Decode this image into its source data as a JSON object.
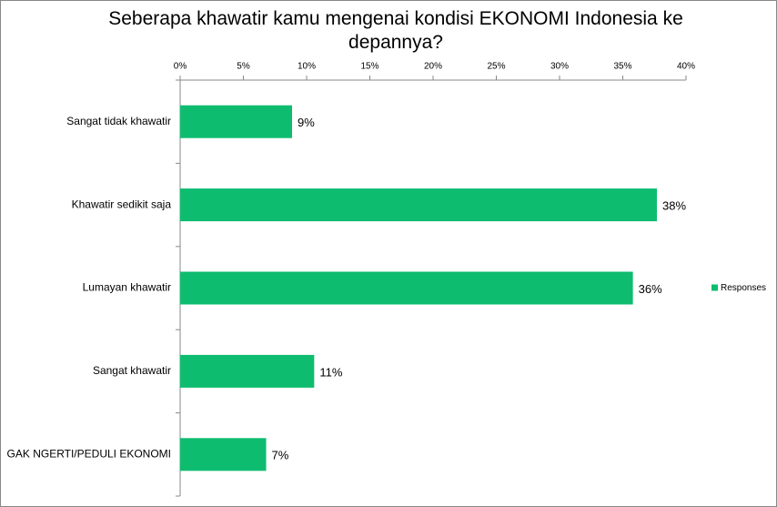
{
  "chart_data": {
    "type": "bar",
    "orientation": "horizontal",
    "title": "Seberapa khawatir kamu mengenai kondisi EKONOMI Indonesia ke depannya?",
    "categories": [
      "Sangat tidak khawatir",
      "Khawatir sedikit saja",
      "Lumayan khawatir",
      "Sangat khawatir",
      "GAK NGERTI/PEDULI EKONOMI"
    ],
    "series": [
      {
        "name": "Responses",
        "color": "#0ebc70",
        "values": [
          8.85,
          37.7,
          35.8,
          10.6,
          6.8
        ],
        "value_labels": [
          "9%",
          "38%",
          "36%",
          "11%",
          "7%"
        ]
      }
    ],
    "xlim": [
      0,
      40
    ],
    "xticks": [
      {
        "value": 0,
        "label": "0%"
      },
      {
        "value": 5,
        "label": "5%"
      },
      {
        "value": 10,
        "label": "10%"
      },
      {
        "value": 15,
        "label": "15%"
      },
      {
        "value": 20,
        "label": "20%"
      },
      {
        "value": 25,
        "label": "25%"
      },
      {
        "value": 30,
        "label": "30%"
      },
      {
        "value": 35,
        "label": "35%"
      },
      {
        "value": 40,
        "label": "40%"
      }
    ],
    "legend": "right"
  }
}
